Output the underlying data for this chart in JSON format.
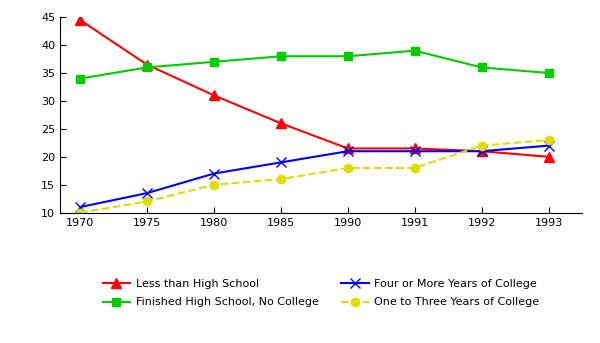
{
  "years": [
    1970,
    1975,
    1980,
    1985,
    1990,
    1991,
    1992,
    1993
  ],
  "x_positions": [
    0,
    1,
    2,
    3,
    4,
    5,
    6,
    7
  ],
  "series": {
    "Less than High School": {
      "values": [
        44.5,
        36.5,
        31.0,
        26.0,
        21.5,
        21.5,
        21.0,
        20.0
      ],
      "color": "#FF0000",
      "marker": "^",
      "linestyle": "-",
      "markersize": 7
    },
    "Finished High School, No College": {
      "values": [
        34.0,
        36.0,
        37.0,
        38.0,
        38.0,
        39.0,
        36.0,
        35.0
      ],
      "color": "#00CC00",
      "marker": "s",
      "linestyle": "-",
      "markersize": 6
    },
    "Four or More Years of College": {
      "values": [
        11.0,
        13.5,
        17.0,
        19.0,
        21.0,
        21.0,
        21.0,
        22.0
      ],
      "color": "#0000FF",
      "marker": "x",
      "linestyle": "-",
      "markersize": 7
    },
    "One to Three Years of College": {
      "values": [
        10.0,
        12.0,
        15.0,
        16.0,
        18.0,
        18.0,
        22.0,
        23.0
      ],
      "color": "#DDDD00",
      "marker": "o",
      "linestyle": "--",
      "markersize": 6
    }
  },
  "ylim": [
    10,
    45
  ],
  "yticks": [
    10,
    15,
    20,
    25,
    30,
    35,
    40,
    45
  ],
  "background_color": "#FFFFFF",
  "linewidth": 1.5,
  "legend_order": [
    "Less than High School",
    "Finished High School, No College",
    "Four or More Years of College",
    "One to Three Years of College"
  ]
}
